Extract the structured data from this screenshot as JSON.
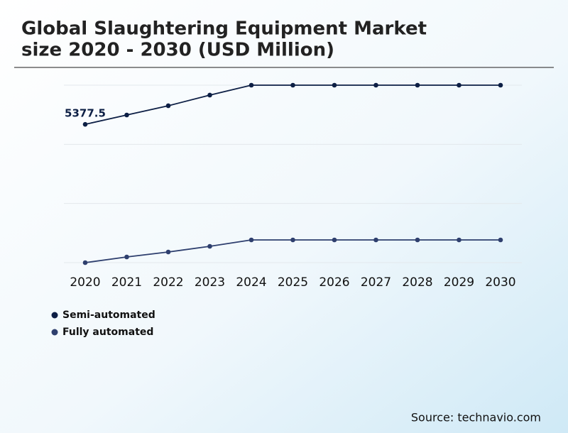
{
  "chart_data": {
    "type": "line",
    "title": "Global Slaughtering Equipment Market",
    "subtitle": "size 2020 - 2030 (USD Million)",
    "categories": [
      "2020",
      "2021",
      "2022",
      "2023",
      "2024",
      "2025",
      "2026",
      "2027",
      "2028",
      "2029",
      "2030"
    ],
    "series": [
      {
        "name": "Semi-automated",
        "color": "#0d1f45",
        "values": [
          5377.5,
          5741,
          6100,
          6514,
          6900,
          6900,
          6900,
          6900,
          6900,
          6900,
          6900
        ]
      },
      {
        "name": "Fully automated",
        "color": "#2e3f6e",
        "values": [
          0,
          221,
          414,
          635,
          883,
          883,
          883,
          883,
          883,
          883,
          883
        ]
      }
    ],
    "ylim": [
      0,
      6900
    ],
    "yticks": [
      0,
      2300,
      4600,
      6900
    ],
    "grid": true,
    "source": "Source: technavio.com"
  }
}
